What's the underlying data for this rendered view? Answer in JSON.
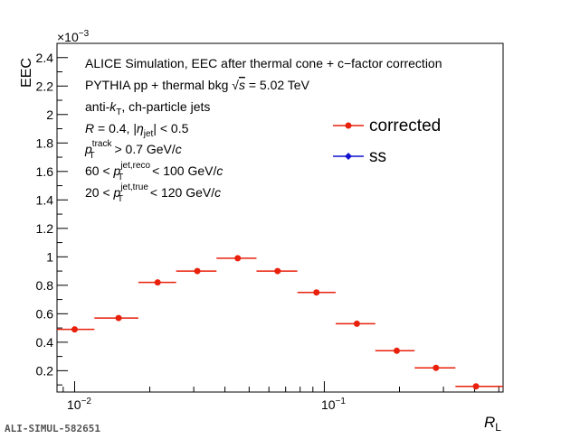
{
  "chart_data": {
    "type": "scatter",
    "title": "",
    "xlabel": "R",
    "xlabel_sub": "L",
    "ylabel": "EEC",
    "y_multiplier": "×10",
    "y_multiplier_exp": "−3",
    "xscale": "log",
    "xlim": [
      0.0085,
      0.52
    ],
    "ylim": [
      0.05,
      2.5
    ],
    "y_ticks": [
      "0.2",
      "0.4",
      "0.6",
      "0.8",
      "1",
      "1.2",
      "1.4",
      "1.6",
      "1.8",
      "2",
      "2.2",
      "2.4"
    ],
    "x_tick_labels": {
      "m2": "10",
      "m2_exp": "−2",
      "m1": "10",
      "m1_exp": "−1"
    },
    "series": [
      {
        "name": "corrected",
        "color": "#e8200c",
        "marker": "circle",
        "points": [
          {
            "x": 0.01,
            "xlo": 0.0085,
            "xhi": 0.012,
            "y": 0.49
          },
          {
            "x": 0.015,
            "xlo": 0.012,
            "xhi": 0.018,
            "y": 0.57
          },
          {
            "x": 0.0215,
            "xlo": 0.018,
            "xhi": 0.0255,
            "y": 0.82
          },
          {
            "x": 0.031,
            "xlo": 0.0255,
            "xhi": 0.037,
            "y": 0.9
          },
          {
            "x": 0.045,
            "xlo": 0.037,
            "xhi": 0.0535,
            "y": 0.99
          },
          {
            "x": 0.065,
            "xlo": 0.0535,
            "xhi": 0.078,
            "y": 0.9
          },
          {
            "x": 0.093,
            "xlo": 0.078,
            "xhi": 0.111,
            "y": 0.75
          },
          {
            "x": 0.135,
            "xlo": 0.111,
            "xhi": 0.16,
            "y": 0.53
          },
          {
            "x": 0.195,
            "xlo": 0.16,
            "xhi": 0.23,
            "y": 0.34
          },
          {
            "x": 0.28,
            "xlo": 0.23,
            "xhi": 0.335,
            "y": 0.22
          },
          {
            "x": 0.405,
            "xlo": 0.335,
            "xhi": 0.52,
            "y": 0.09
          }
        ]
      },
      {
        "name": "ss",
        "color": "#1010d0",
        "marker": "diamond",
        "points": []
      }
    ],
    "legend_position": "top-right",
    "grid": false,
    "annotations": [
      {
        "key": "a1",
        "text": "ALICE Simulation, EEC after thermal cone + c−factor correction"
      },
      {
        "key": "a2",
        "text": "PYTHIA pp + thermal bkg √s = 5.02 TeV"
      },
      {
        "key": "a3",
        "text": "anti-kT, ch-particle jets"
      },
      {
        "key": "a4",
        "text": "R = 0.4, |ηjet| < 0.5"
      },
      {
        "key": "a5",
        "text": "pTtrack > 0.7 GeV/c"
      },
      {
        "key": "a6",
        "text": "60 < pTjet,reco < 100 GeV/c"
      },
      {
        "key": "a7",
        "text": "20 < pTjet,true < 120 GeV/c"
      }
    ]
  },
  "footer": {
    "id_label": "ALI-SIMUL-582651"
  }
}
